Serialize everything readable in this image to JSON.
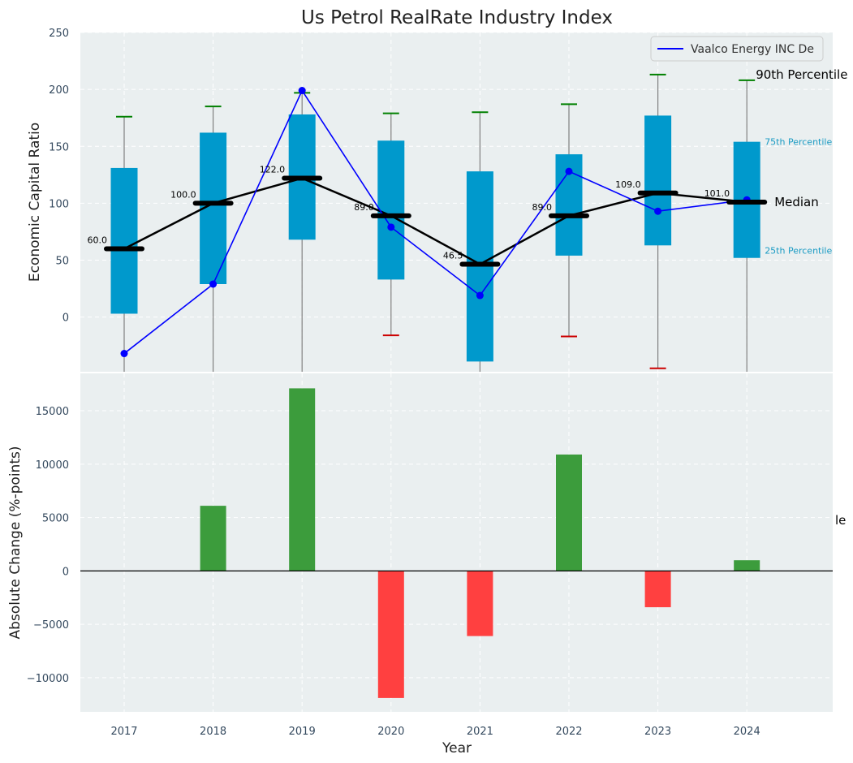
{
  "chart_data": [
    {
      "type": "boxplot",
      "title": "Us Petrol RealRate Industry Index",
      "xlabel": "",
      "ylabel": "Economic Capital Ratio",
      "ylim": [
        -48,
        250
      ],
      "yticks": [
        0,
        50,
        100,
        150,
        200,
        250
      ],
      "categories": [
        "2017",
        "2018",
        "2019",
        "2020",
        "2021",
        "2022",
        "2023",
        "2024"
      ],
      "p25": [
        3,
        29,
        68,
        33,
        -39,
        54,
        63,
        52
      ],
      "p75": [
        131,
        162,
        178,
        155,
        128,
        143,
        177,
        154
      ],
      "median": [
        60,
        100,
        122,
        89,
        46.5,
        89,
        109,
        101
      ],
      "median_labels": [
        "60.0",
        "100.0",
        "122.0",
        "89.0",
        "46.5",
        "89.0",
        "109.0",
        "101.0"
      ],
      "p90": [
        176,
        185,
        197,
        179,
        180,
        187,
        213,
        208
      ],
      "p90_color": [
        "green",
        "green",
        "green",
        "green",
        "green",
        "green",
        "green",
        "green"
      ],
      "p10": [
        null,
        null,
        null,
        -16,
        null,
        -17,
        -45,
        null
      ],
      "company_series": {
        "name": "Vaalco Energy INC De",
        "values": [
          -32,
          29,
          199,
          79,
          19,
          128,
          93,
          103
        ]
      },
      "annotations": {
        "p90": "90th Percentile",
        "p75": "75th Percentile",
        "median": "Median",
        "p25": "25th Percentile"
      },
      "legend": {
        "position": "top-right",
        "entries": [
          "Vaalco Energy INC De"
        ]
      },
      "grid": true
    },
    {
      "type": "bar",
      "title": "",
      "xlabel": "Year",
      "ylabel": "Absolute Change (%-points)",
      "ylim": [
        -13200,
        18500
      ],
      "yticks": [
        -10000,
        -5000,
        0,
        5000,
        10000,
        15000
      ],
      "ytick_labels": [
        "−10000",
        "−5000",
        "0",
        "5000",
        "10000",
        "15000"
      ],
      "categories": [
        "2017",
        "2018",
        "2019",
        "2020",
        "2021",
        "2022",
        "2023",
        "2024"
      ],
      "values": [
        0,
        6100,
        17100,
        -11900,
        -6100,
        10900,
        -3400,
        1000
      ],
      "positive_color": "#3c9c3c",
      "negative_color": "#ff4040",
      "side_text": "le",
      "grid": true
    }
  ],
  "colors": {
    "plot_bg": "#eaeff0",
    "box": "#0099cc",
    "company_line": "#0000ff",
    "median": "#000000",
    "whisker": "#808080",
    "p90_cap": "#008000",
    "p10_cap": "#cc0000",
    "percentile_label": "#1a9bc4"
  }
}
